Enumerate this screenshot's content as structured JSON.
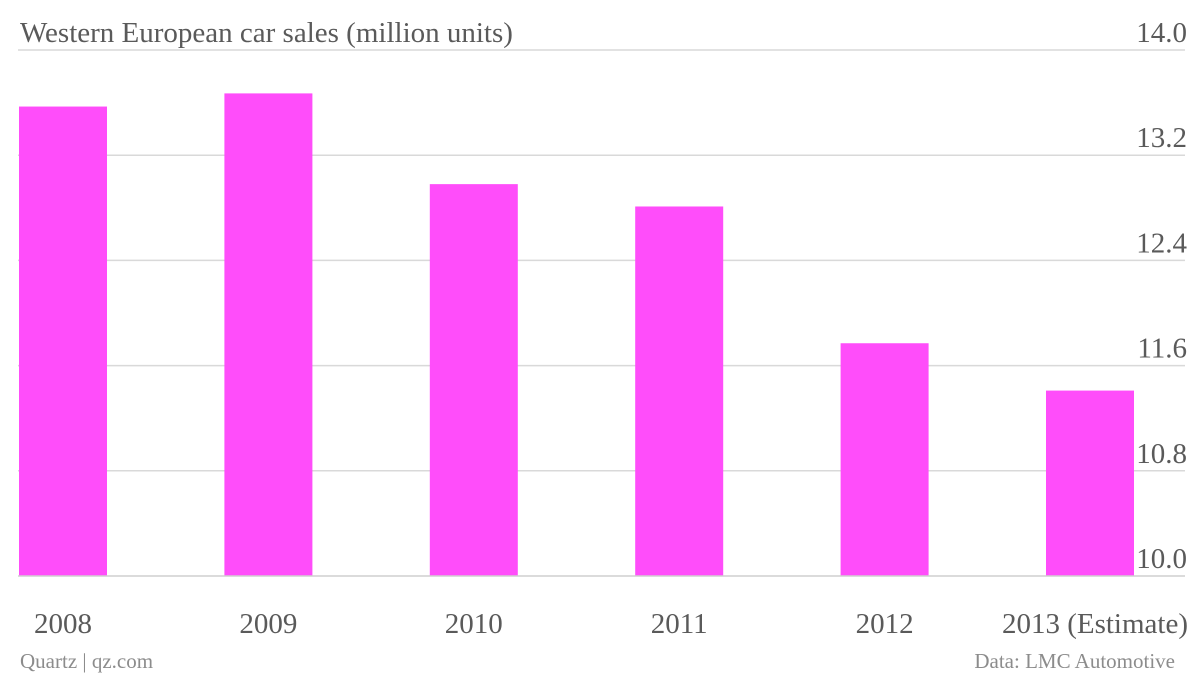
{
  "chart_data": {
    "type": "bar",
    "title": "Western European car sales (million units)",
    "categories": [
      "2008",
      "2009",
      "2010",
      "2011",
      "2012",
      "2013 (Estimate)"
    ],
    "values": [
      13.57,
      13.67,
      12.98,
      12.81,
      11.77,
      11.41
    ],
    "ylim": [
      10.0,
      14.0
    ],
    "yticks": [
      "10.0",
      "10.8",
      "11.6",
      "12.4",
      "13.2",
      "14.0"
    ],
    "grid": true,
    "y_axis_position": "right",
    "bar_color": "#ff4dfa"
  },
  "footer": {
    "source_left": "Quartz | qz.com",
    "source_right": "Data: LMC Automotive"
  }
}
